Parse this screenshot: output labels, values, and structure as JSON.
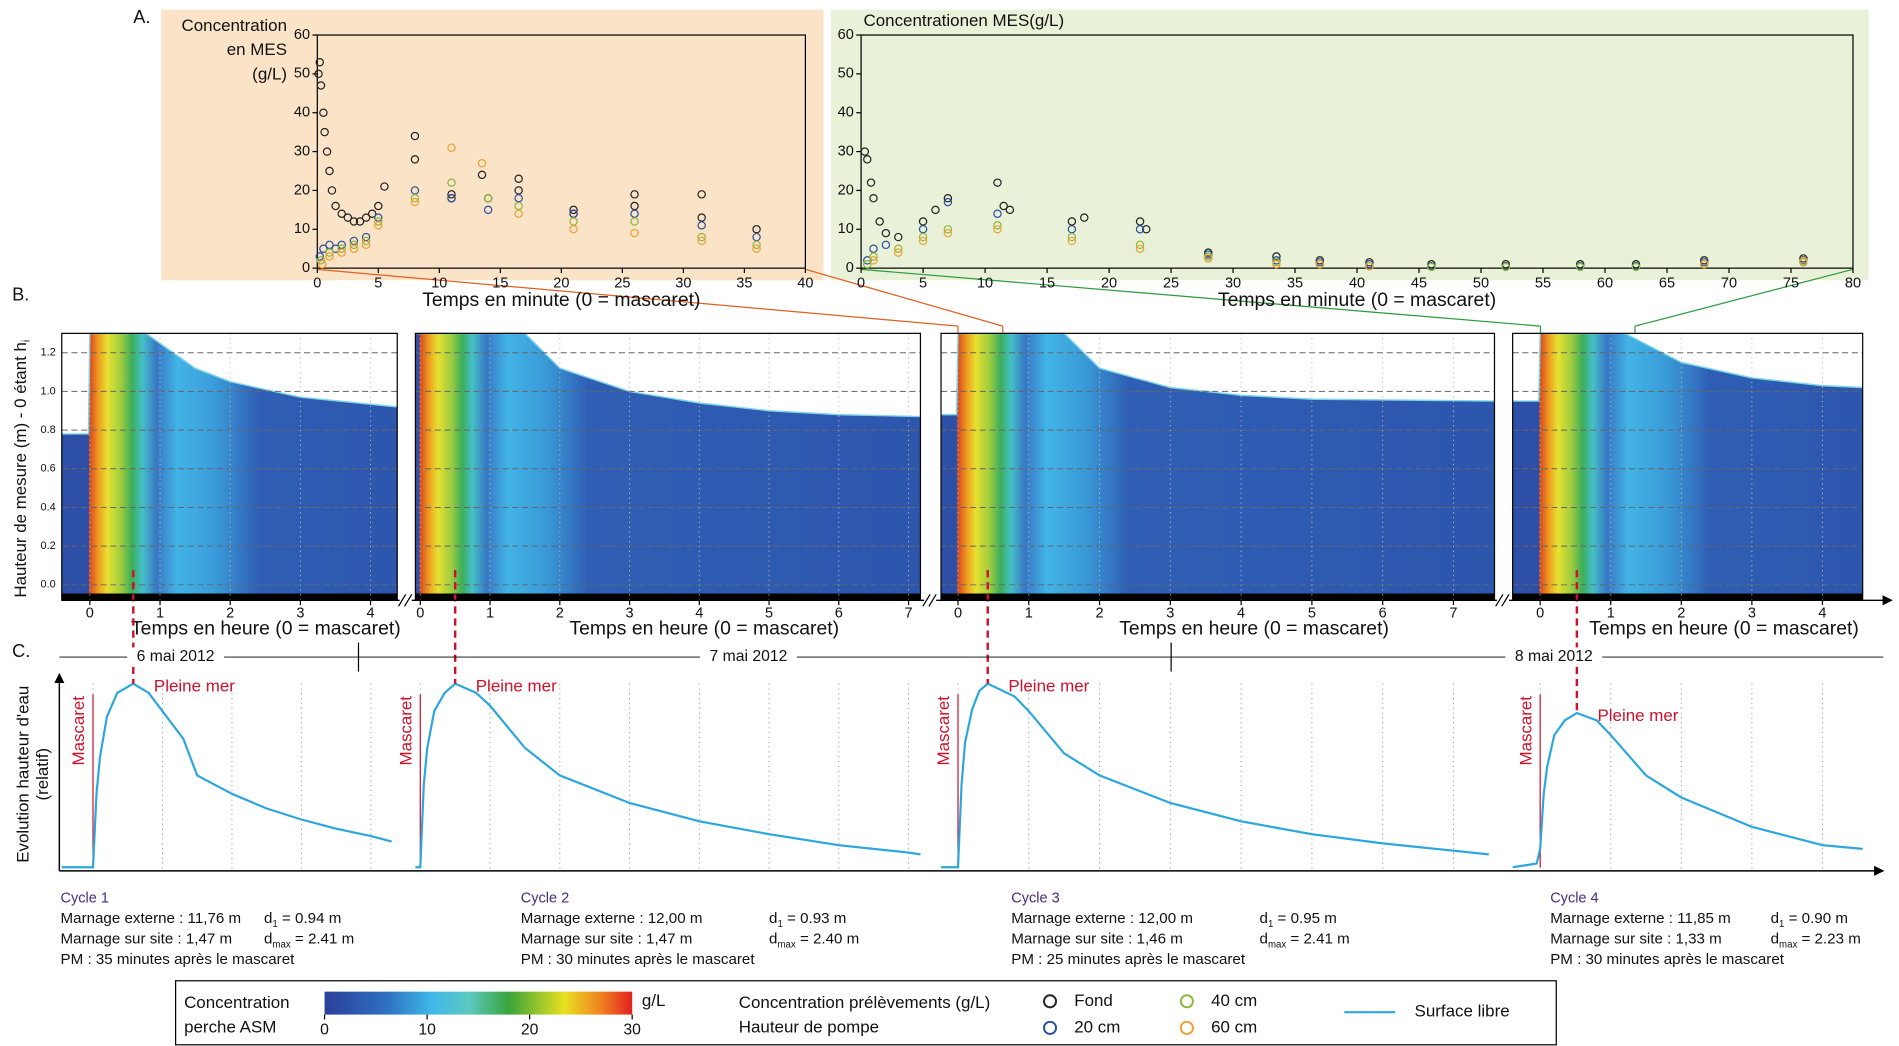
{
  "figure": {
    "panel_labels": [
      "A.",
      "B.",
      "C."
    ],
    "dates": [
      "6 mai 2012",
      "7 mai 2012",
      "8 mai 2012"
    ],
    "cycles": [
      {
        "name": "Cycle 1",
        "marnage_externe": "Marnage externe : 11,76 m",
        "marnage_site": "Marnage sur site : 1,47 m",
        "pm": "PM : 35 minutes après le mascaret",
        "d1": [
          "d",
          "1",
          " = 0.94 m"
        ],
        "dmax": [
          "d",
          "max",
          " = 2.41 m"
        ]
      },
      {
        "name": "Cycle 2",
        "marnage_externe": "Marnage externe : 12,00 m",
        "marnage_site": "Marnage sur site : 1,47 m",
        "pm": "PM : 30 minutes après le mascaret",
        "d1": [
          "d",
          "1",
          " = 0.93 m"
        ],
        "dmax": [
          "d",
          "max",
          " = 2.40 m"
        ]
      },
      {
        "name": "Cycle 3",
        "marnage_externe": "Marnage externe : 12,00 m",
        "marnage_site": "Marnage sur site : 1,46 m",
        "pm": "PM : 25 minutes après le mascaret",
        "d1": [
          "d",
          "1",
          " = 0.95 m"
        ],
        "dmax": [
          "d",
          "max",
          " = 2.41 m"
        ]
      },
      {
        "name": "Cycle 4",
        "marnage_externe": "Marnage externe : 11,85 m",
        "marnage_site": "Marnage sur site : 1,33 m",
        "pm": "PM : 30 minutes après le mascaret",
        "d1": [
          "d",
          "1",
          " = 0.90 m"
        ],
        "dmax": [
          "d",
          "max",
          " = 2.23 m"
        ]
      }
    ],
    "legend": {
      "colorbar_title": [
        "Concentration",
        "perche ASM"
      ],
      "colorbar_ticks": [
        0,
        10,
        20,
        30
      ],
      "colorbar_unit": "g/L",
      "samples_title": "Concentration prélèvements (g/L)",
      "pump_title": "Hauteur de pompe"
    }
  },
  "chart_data": [
    {
      "type": "scatter",
      "title": [
        "Concentration",
        "en MES",
        "(g/L)"
      ],
      "xlabel": "Temps en minute (0 = mascaret)",
      "xlim": [
        0,
        40
      ],
      "ylim": [
        0,
        60
      ],
      "xticks": [
        0,
        5,
        10,
        15,
        20,
        25,
        30,
        35,
        40
      ],
      "yticks": [
        0,
        10,
        20,
        30,
        40,
        50,
        60
      ],
      "background": "#fbe3c8",
      "series": [
        {
          "name": "Fond",
          "color": "#222222",
          "x": [
            0.1,
            0.2,
            0.3,
            0.5,
            0.6,
            0.8,
            1,
            1.2,
            1.5,
            2,
            2.5,
            3,
            3.5,
            4,
            4.5,
            5,
            5.5,
            8,
            8,
            11,
            11,
            13.5,
            14,
            16.5,
            16.5,
            21,
            21,
            26,
            26,
            31.5,
            31.5,
            36
          ],
          "values": [
            50,
            53,
            47,
            40,
            35,
            30,
            25,
            20,
            16,
            14,
            13,
            12,
            12,
            13,
            14,
            16,
            21,
            34,
            28,
            19,
            18,
            24,
            18,
            23,
            20,
            15,
            14,
            19,
            16,
            19,
            13,
            10
          ]
        },
        {
          "name": "20 cm",
          "color": "#2a4f9e",
          "x": [
            0.2,
            0.5,
            1,
            1.5,
            2,
            3,
            4,
            5,
            8,
            11,
            14,
            16.5,
            21,
            26,
            31.5,
            36
          ],
          "values": [
            3,
            5,
            6,
            5,
            6,
            7,
            8,
            13,
            20,
            18,
            15,
            18,
            14,
            14,
            11,
            8
          ]
        },
        {
          "name": "40 cm",
          "color": "#8ab83a",
          "x": [
            0.3,
            1,
            2,
            3,
            4,
            5,
            8,
            11,
            14,
            16.5,
            21,
            26,
            31.5,
            36
          ],
          "values": [
            2,
            4,
            5,
            6,
            7,
            12,
            18,
            22,
            18,
            16,
            12,
            12,
            8,
            6
          ]
        },
        {
          "name": "60 cm",
          "color": "#f0a030",
          "x": [
            0.4,
            1,
            2,
            3,
            4,
            5,
            8,
            11,
            13.5,
            16.5,
            21,
            26,
            31.5,
            36
          ],
          "values": [
            1,
            3,
            4,
            5,
            6,
            11,
            17,
            31,
            27,
            14,
            10,
            9,
            7,
            5
          ]
        }
      ]
    },
    {
      "type": "scatter",
      "title": "Concentrationen MES(g/L)",
      "xlabel": "Temps en minute (0 = mascaret)",
      "xlim": [
        0,
        80
      ],
      "ylim": [
        0,
        60
      ],
      "xticks": [
        0,
        5,
        10,
        15,
        20,
        25,
        30,
        35,
        40,
        45,
        50,
        55,
        60,
        65,
        70,
        75,
        80
      ],
      "yticks": [
        0,
        10,
        20,
        30,
        40,
        50,
        60
      ],
      "background": "#e9f1d8",
      "series": [
        {
          "name": "Fond",
          "color": "#222222",
          "x": [
            0.3,
            0.5,
            0.8,
            1,
            1.5,
            2,
            3,
            5,
            6,
            7,
            11,
            11.5,
            12,
            17,
            18,
            22.5,
            23,
            28,
            33.5,
            37,
            41,
            46,
            52,
            58,
            62.5,
            68,
            76
          ],
          "values": [
            30,
            28,
            22,
            18,
            12,
            9,
            8,
            12,
            15,
            18,
            22,
            16,
            15,
            12,
            13,
            12,
            10,
            4,
            3,
            2,
            1.5,
            1,
            1,
            1,
            1,
            2,
            2.5
          ]
        },
        {
          "name": "20 cm",
          "color": "#2a4f9e",
          "x": [
            0.5,
            1,
            2,
            5,
            7,
            11,
            17,
            22.5,
            28,
            33.5,
            37,
            41,
            46,
            52,
            58,
            62.5,
            68,
            76
          ],
          "values": [
            2,
            5,
            6,
            10,
            17,
            14,
            10,
            10,
            3.5,
            2,
            1.5,
            1,
            0.5,
            0.5,
            0.5,
            0.5,
            1.5,
            2
          ]
        },
        {
          "name": "40 cm",
          "color": "#8ab83a",
          "x": [
            0.5,
            1,
            3,
            5,
            7,
            11,
            17,
            22.5,
            28,
            33.5,
            37,
            41,
            46,
            52,
            58,
            62.5,
            68,
            76
          ],
          "values": [
            1,
            3,
            5,
            8,
            10,
            11,
            8,
            6,
            3,
            1.5,
            1,
            0.5,
            0.3,
            0.3,
            0.3,
            0.3,
            1,
            1.5
          ]
        },
        {
          "name": "60 cm",
          "color": "#f0a030",
          "x": [
            1,
            3,
            5,
            7,
            11,
            17,
            22.5,
            28,
            33.5,
            37,
            41,
            68,
            76
          ],
          "values": [
            2,
            4,
            7,
            9,
            10,
            7,
            5,
            2.5,
            1,
            1,
            0.5,
            1,
            1.8
          ]
        }
      ]
    },
    {
      "type": "heatmap",
      "xlabel": "Temps en heure (0 = mascaret)",
      "ylabel": "Hauteur de mesure (m) - 0 étant h",
      "ylabel_sub": "i",
      "xlim": [
        -0.4,
        4.38
      ],
      "ylim": [
        -0.08,
        1.3
      ],
      "xticks": [
        0,
        1,
        2,
        3,
        4
      ],
      "yticks": [
        {
          "value": 0,
          "label": "0.0"
        },
        {
          "value": 0.2,
          "label": "0.2"
        },
        {
          "value": 0.4,
          "label": "0.4"
        },
        {
          "value": 0.6,
          "label": "0.6"
        },
        {
          "value": 0.8,
          "label": "0.8"
        },
        {
          "value": 1,
          "label": "1.0"
        },
        {
          "value": 1.2,
          "label": "1.2"
        }
      ],
      "surface": {
        "x": [
          -0.4,
          -0.02,
          0,
          0.8,
          1.5,
          2,
          3,
          4.38
        ],
        "values": [
          0.78,
          0.78,
          1.3,
          1.3,
          1.12,
          1.05,
          0.97,
          0.92
        ]
      }
    },
    {
      "type": "heatmap",
      "xlabel": "Temps en heure (0 = mascaret)",
      "xlim": [
        -0.07,
        7.17
      ],
      "ylim": [
        -0.08,
        1.3
      ],
      "xticks": [
        0,
        1,
        2,
        3,
        4,
        5,
        6,
        7
      ],
      "yticks": [
        {
          "value": 0,
          "label": "0.0"
        },
        {
          "value": 0.2,
          "label": "0.2"
        },
        {
          "value": 0.4,
          "label": "0.4"
        },
        {
          "value": 0.6,
          "label": "0.6"
        },
        {
          "value": 0.8,
          "label": "0.8"
        },
        {
          "value": 1,
          "label": "1.0"
        },
        {
          "value": 1.2,
          "label": "1.2"
        }
      ],
      "surface": {
        "x": [
          -0.07,
          0,
          1.5,
          2,
          3,
          4,
          5,
          6,
          7.17
        ],
        "values": [
          1.3,
          1.3,
          1.3,
          1.12,
          1,
          0.94,
          0.9,
          0.88,
          0.87
        ]
      }
    },
    {
      "type": "heatmap",
      "xlabel": "Temps en heure (0 = mascaret)",
      "xlim": [
        -0.24,
        7.58
      ],
      "ylim": [
        -0.08,
        1.3
      ],
      "xticks": [
        0,
        1,
        2,
        3,
        4,
        5,
        6,
        7
      ],
      "yticks": [
        {
          "value": 0,
          "label": "0.0"
        },
        {
          "value": 0.2,
          "label": "0.2"
        },
        {
          "value": 0.4,
          "label": "0.4"
        },
        {
          "value": 0.6,
          "label": "0.6"
        },
        {
          "value": 0.8,
          "label": "0.8"
        },
        {
          "value": 1,
          "label": "1.0"
        },
        {
          "value": 1.2,
          "label": "1.2"
        }
      ],
      "surface": {
        "x": [
          -0.24,
          -0.02,
          0,
          1.5,
          2,
          3,
          4,
          5,
          7.58
        ],
        "values": [
          0.88,
          0.88,
          1.3,
          1.3,
          1.12,
          1.02,
          0.98,
          0.96,
          0.95
        ]
      }
    },
    {
      "type": "heatmap",
      "xlabel": "Temps en heure (0 = mascaret)",
      "xlim": [
        -0.39,
        4.57
      ],
      "ylim": [
        -0.08,
        1.3
      ],
      "xticks": [
        0,
        1,
        2,
        3,
        4
      ],
      "yticks": [
        {
          "value": 0,
          "label": "0.0"
        },
        {
          "value": 0.2,
          "label": "0.2"
        },
        {
          "value": 0.4,
          "label": "0.4"
        },
        {
          "value": 0.6,
          "label": "0.6"
        },
        {
          "value": 0.8,
          "label": "0.8"
        },
        {
          "value": 1,
          "label": "1.0"
        },
        {
          "value": 1.2,
          "label": "1.2"
        }
      ],
      "surface": {
        "x": [
          -0.39,
          -0.02,
          0,
          1.2,
          2,
          3,
          4,
          4.57
        ],
        "values": [
          0.95,
          0.95,
          1.3,
          1.3,
          1.15,
          1.07,
          1.03,
          1.02
        ]
      }
    },
    {
      "type": "line",
      "ylabel": [
        "Evolution hauteur d'eau",
        "(relatif)"
      ],
      "annotations": [
        "Mascaret",
        "Pleine mer"
      ],
      "xlim": [
        -0.45,
        4.38
      ],
      "ylim": [
        0,
        1
      ],
      "series": [
        {
          "name": "Surface libre",
          "color": "#2ba6de",
          "x": [
            -0.45,
            0,
            0.05,
            0.1,
            0.2,
            0.35,
            0.58,
            0.8,
            1,
            1.3,
            1.5,
            2,
            2.5,
            3,
            3.5,
            4,
            4.3
          ],
          "values": [
            0,
            0,
            0.4,
            0.6,
            0.82,
            0.95,
            1,
            0.95,
            0.85,
            0.7,
            0.5,
            0.4,
            0.32,
            0.26,
            0.21,
            0.17,
            0.14
          ]
        }
      ]
    },
    {
      "type": "line",
      "annotations": [
        "Mascaret",
        "Pleine mer"
      ],
      "xlim": [
        -0.07,
        7.17
      ],
      "ylim": [
        0,
        1
      ],
      "series": [
        {
          "name": "Surface libre",
          "color": "#2ba6de",
          "x": [
            -0.07,
            0,
            0.05,
            0.1,
            0.2,
            0.35,
            0.5,
            0.8,
            1,
            1.5,
            2,
            3,
            4,
            5,
            6,
            7,
            7.17
          ],
          "values": [
            0,
            0,
            0.45,
            0.65,
            0.85,
            0.95,
            1,
            0.95,
            0.88,
            0.65,
            0.5,
            0.35,
            0.25,
            0.18,
            0.12,
            0.08,
            0.07
          ]
        }
      ]
    },
    {
      "type": "line",
      "annotations": [
        "Mascaret",
        "Pleine mer"
      ],
      "xlim": [
        -0.24,
        7.58
      ],
      "ylim": [
        0,
        1
      ],
      "series": [
        {
          "name": "Surface libre",
          "color": "#2ba6de",
          "x": [
            -0.24,
            0,
            0.05,
            0.1,
            0.2,
            0.3,
            0.42,
            0.8,
            1,
            1.5,
            2,
            3,
            4,
            5,
            6,
            7,
            7.5
          ],
          "values": [
            0,
            0,
            0.45,
            0.68,
            0.86,
            0.96,
            1,
            0.93,
            0.85,
            0.62,
            0.5,
            0.35,
            0.25,
            0.18,
            0.13,
            0.09,
            0.07
          ]
        }
      ]
    },
    {
      "type": "line",
      "annotations": [
        "Mascaret",
        "Pleine mer"
      ],
      "xlim": [
        -0.39,
        4.57
      ],
      "ylim": [
        0,
        1
      ],
      "series": [
        {
          "name": "Surface libre",
          "color": "#2ba6de",
          "x": [
            -0.39,
            -0.05,
            0,
            0.05,
            0.1,
            0.2,
            0.35,
            0.52,
            0.8,
            1,
            1.5,
            2,
            3,
            4,
            4.57
          ],
          "values": [
            0,
            0.02,
            0.1,
            0.4,
            0.55,
            0.72,
            0.8,
            0.84,
            0.8,
            0.72,
            0.5,
            0.38,
            0.22,
            0.12,
            0.1
          ]
        }
      ]
    }
  ]
}
